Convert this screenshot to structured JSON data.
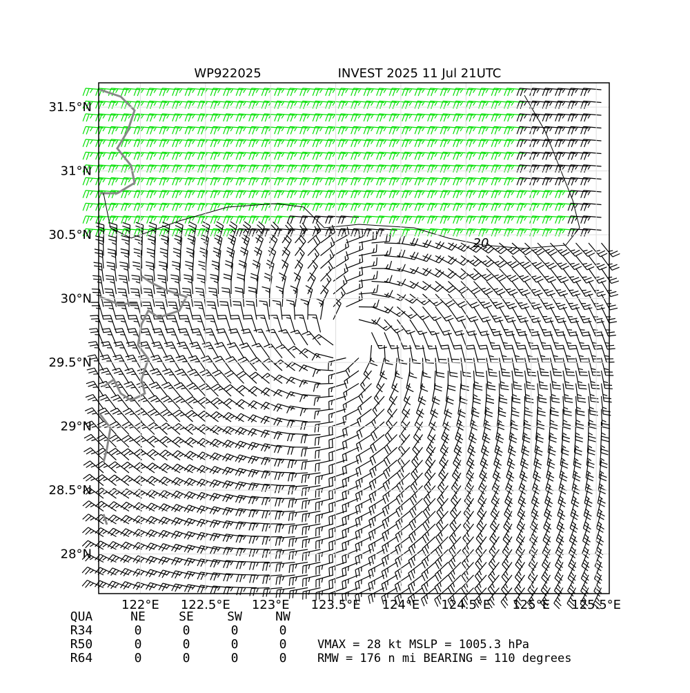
{
  "chart_data": {
    "type": "barbs",
    "title_left": "WP922025",
    "title_right": "INVEST 2025 11 Jul 21UTC",
    "xlim": [
      121.68,
      125.6
    ],
    "ylim": [
      27.69,
      31.69
    ],
    "xticks": [
      {
        "value": 122,
        "label": "122°E"
      },
      {
        "value": 122.5,
        "label": "122.5°E"
      },
      {
        "value": 123,
        "label": "123°E"
      },
      {
        "value": 123.5,
        "label": "123.5°E"
      },
      {
        "value": 124,
        "label": "124°E"
      },
      {
        "value": 124.5,
        "label": "124.5°E"
      },
      {
        "value": 125,
        "label": "125°E"
      },
      {
        "value": 125.5,
        "label": "125.5°E"
      }
    ],
    "yticks": [
      {
        "value": 28,
        "label": "28°N"
      },
      {
        "value": 28.5,
        "label": "28.5°N"
      },
      {
        "value": 29,
        "label": "29°N"
      },
      {
        "value": 29.5,
        "label": "29.5°N"
      },
      {
        "value": 30,
        "label": "30°N"
      },
      {
        "value": 30.5,
        "label": "30.5°N"
      },
      {
        "value": 31,
        "label": "31°N"
      },
      {
        "value": 31.5,
        "label": "31.5°N"
      }
    ],
    "grid": true,
    "contour_label": "20"
  },
  "table": {
    "header": [
      "QUA",
      "NE",
      "SE",
      "SW",
      "NW"
    ],
    "rows": [
      [
        "R34",
        "0",
        "0",
        "0",
        "0"
      ],
      [
        "R50",
        "0",
        "0",
        "0",
        "0"
      ],
      [
        "R64",
        "0",
        "0",
        "0",
        "0"
      ]
    ],
    "line1": "VMAX =  28 kt MSLP = 1005.3 hPa",
    "line2": "RMW = 176 n mi BEARING = 110 degrees"
  }
}
